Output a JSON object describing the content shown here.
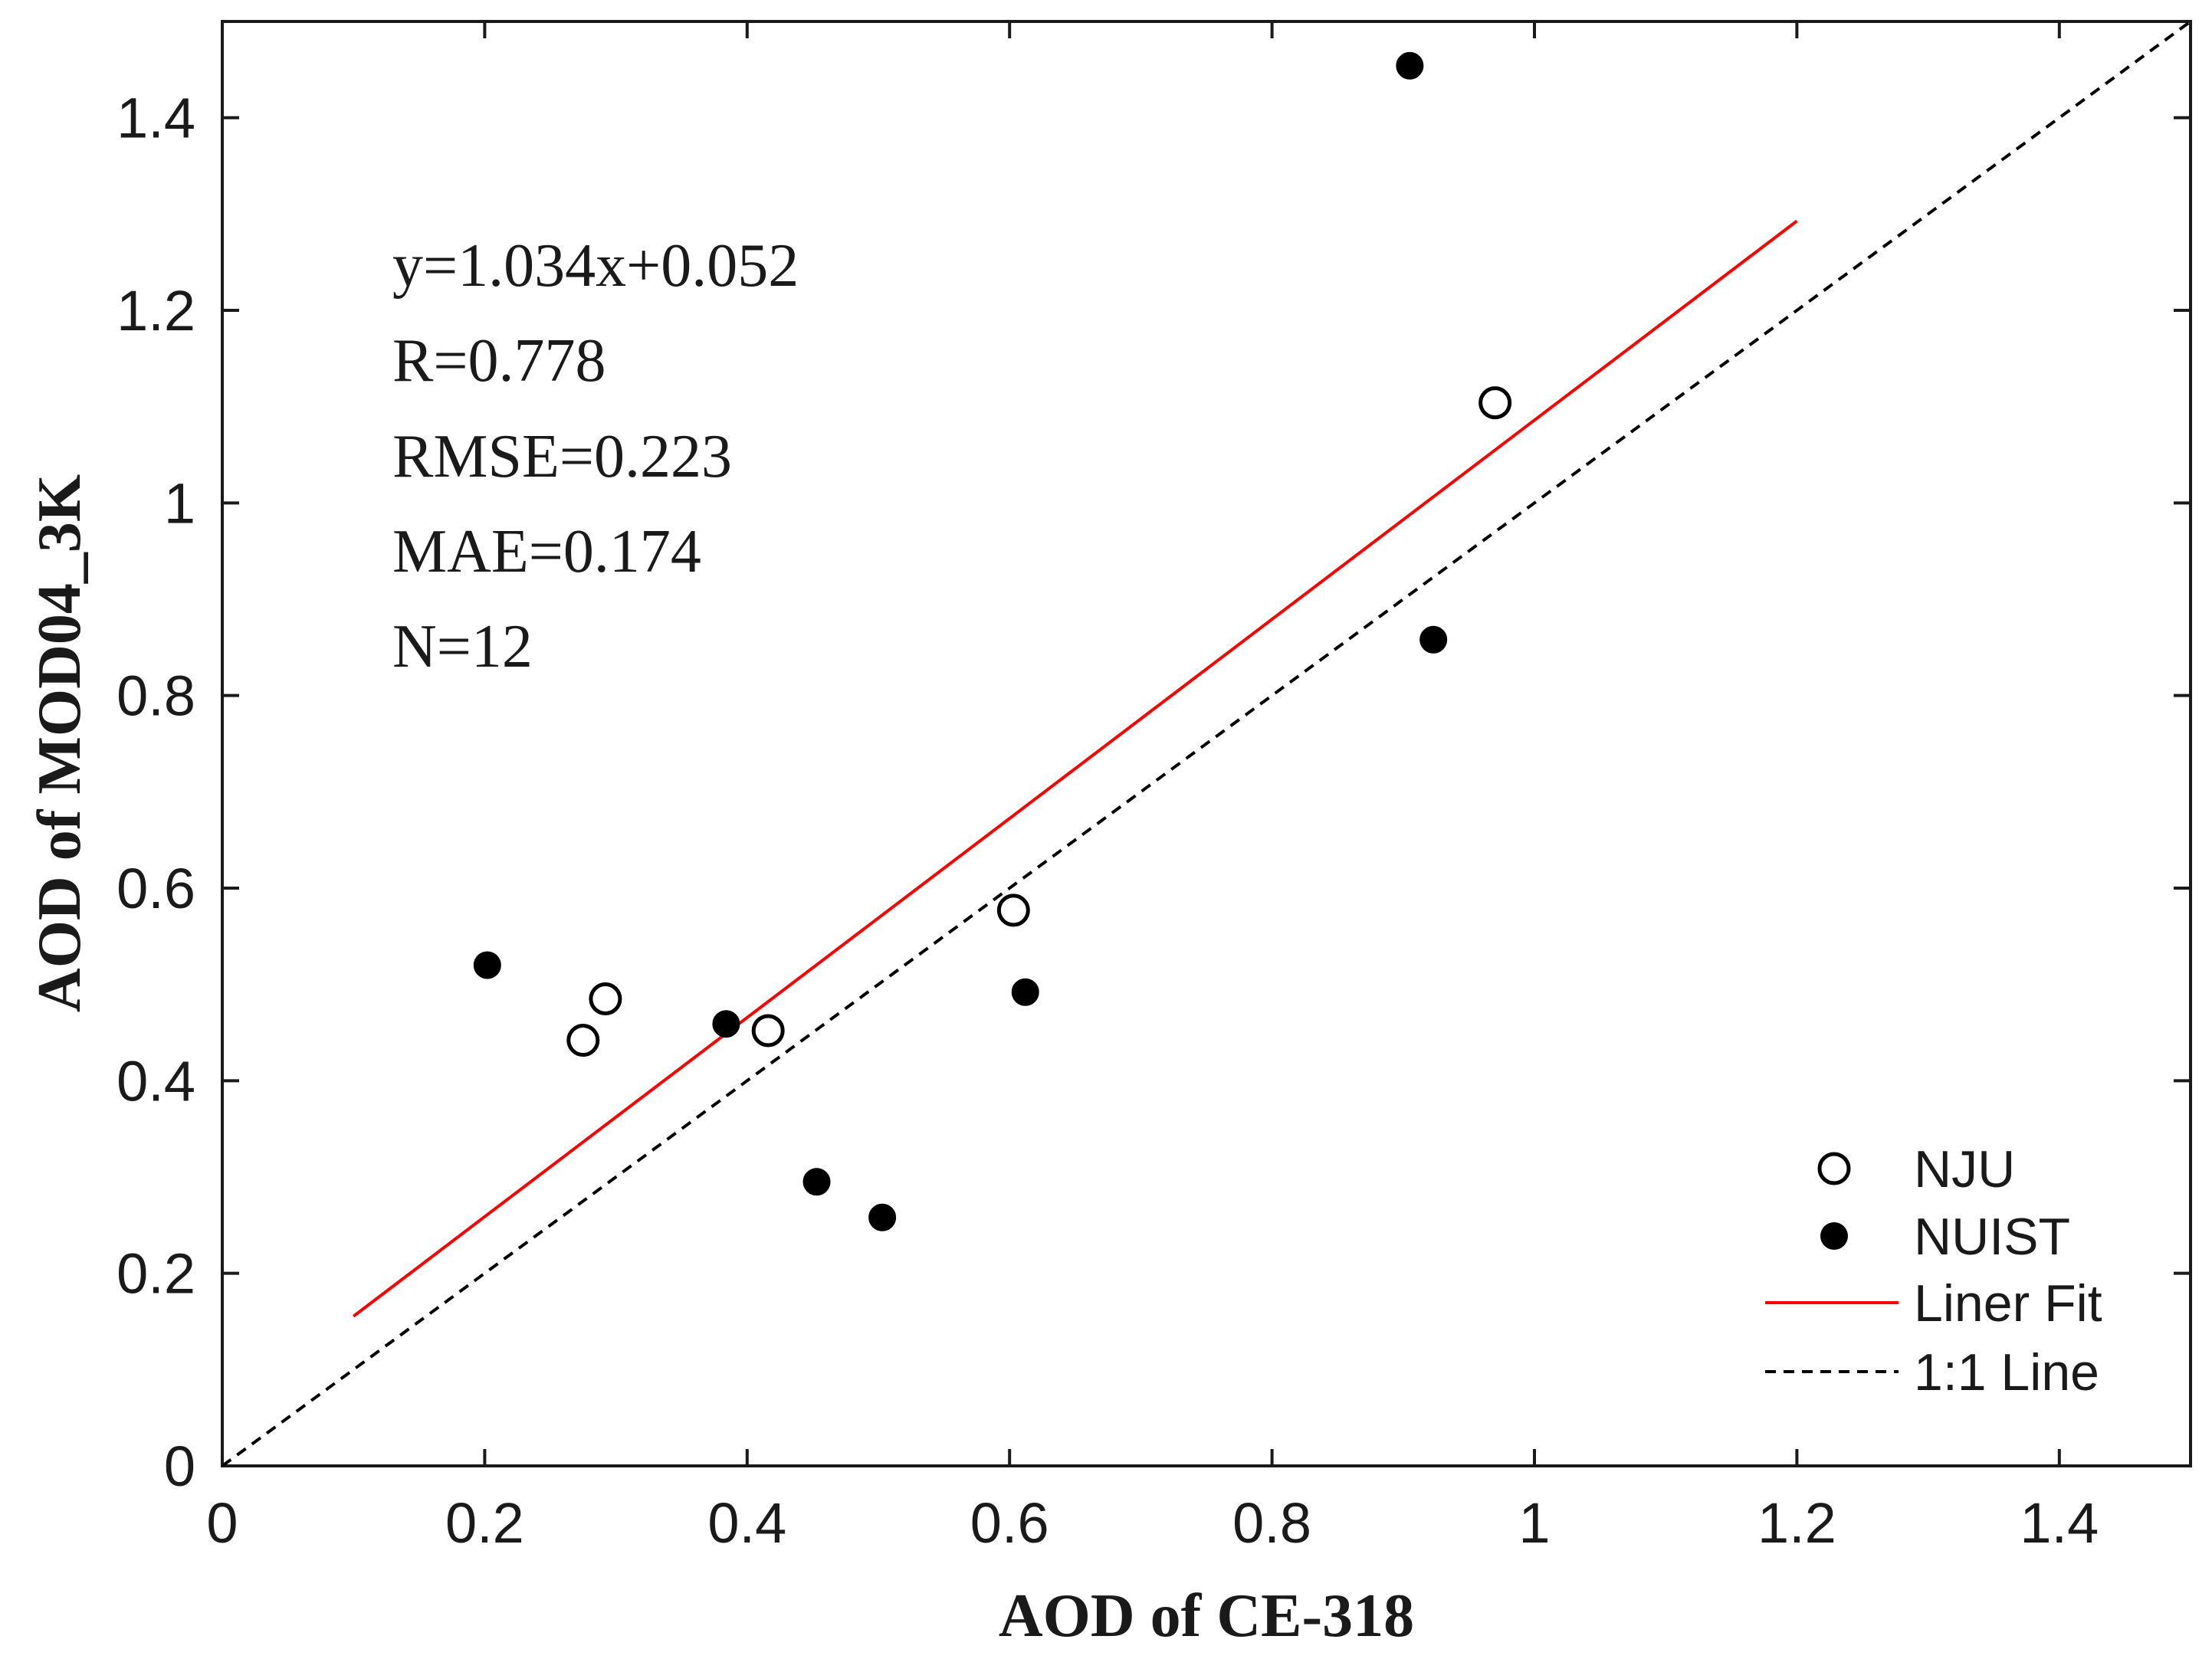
{
  "chart_data": {
    "type": "scatter",
    "title": "",
    "xlabel": "AOD of CE-318",
    "ylabel": "AOD of MOD04_3K",
    "xlim": [
      0,
      1.5
    ],
    "ylim": [
      0,
      1.5
    ],
    "xticks": [
      0,
      0.2,
      0.4,
      0.6,
      0.8,
      1,
      1.2,
      1.4
    ],
    "yticks": [
      0,
      0.2,
      0.4,
      0.6,
      0.8,
      1,
      1.2,
      1.4
    ],
    "xtick_labels": [
      "0",
      "0.2",
      "0.4",
      "0.6",
      "0.8",
      "1",
      "1.2",
      "1.4"
    ],
    "ytick_labels": [
      "0",
      "0.2",
      "0.4",
      "0.6",
      "0.8",
      "1",
      "1.2",
      "1.4"
    ],
    "grid": false,
    "series": [
      {
        "name": "NJU",
        "marker": "open-circle",
        "color": "#000000",
        "points": [
          {
            "x": 0.275,
            "y": 0.442
          },
          {
            "x": 0.292,
            "y": 0.485
          },
          {
            "x": 0.416,
            "y": 0.452
          },
          {
            "x": 0.603,
            "y": 0.577
          },
          {
            "x": 0.97,
            "y": 1.104
          }
        ]
      },
      {
        "name": "NUIST",
        "marker": "filled-circle",
        "color": "#000000",
        "points": [
          {
            "x": 0.202,
            "y": 0.52
          },
          {
            "x": 0.384,
            "y": 0.459
          },
          {
            "x": 0.453,
            "y": 0.295
          },
          {
            "x": 0.503,
            "y": 0.258
          },
          {
            "x": 0.612,
            "y": 0.492
          },
          {
            "x": 0.905,
            "y": 1.454
          },
          {
            "x": 0.923,
            "y": 0.858
          }
        ]
      }
    ],
    "lines": [
      {
        "name": "Liner Fit",
        "style": "solid",
        "color": "#ff0000",
        "slope": 1.034,
        "intercept": 0.052,
        "x_range": [
          0.1,
          1.2
        ]
      },
      {
        "name": "1:1 Line",
        "style": "dashed",
        "color": "#000000",
        "slope": 1,
        "intercept": 0,
        "x_range": [
          0,
          1.5
        ]
      }
    ],
    "annotations": [
      "y=1.034x+0.052",
      "R=0.778",
      "RMSE=0.223",
      "MAE=0.174",
      "N=12"
    ],
    "legend": {
      "position": "bottom-right",
      "entries": [
        "NJU",
        "NUIST",
        "Liner Fit",
        "1:1 Line"
      ]
    }
  }
}
